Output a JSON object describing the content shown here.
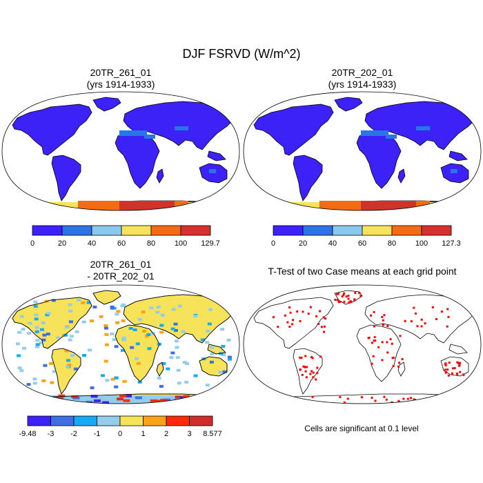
{
  "chart_data": [
    {
      "type": "heatmap",
      "panel": "top-left",
      "title_line1": "20TR_261_01",
      "title_line2": "(yrs 1914-1933)",
      "colorbar": {
        "ticks": [
          "0",
          "20",
          "40",
          "60",
          "80",
          "100",
          "129.7"
        ],
        "colors": [
          "#3c22f6",
          "#2b73e8",
          "#87c9ef",
          "#f7e35a",
          "#f56a12",
          "#d3312c"
        ]
      }
    },
    {
      "type": "heatmap",
      "panel": "top-right",
      "title_line1": "20TR_202_01",
      "title_line2": "(yrs 1914-1933)",
      "colorbar": {
        "ticks": [
          "0",
          "20",
          "40",
          "60",
          "80",
          "100",
          "127.3"
        ],
        "colors": [
          "#3c22f6",
          "#2b73e8",
          "#87c9ef",
          "#f7e35a",
          "#f56a12",
          "#d3312c"
        ]
      }
    },
    {
      "type": "heatmap",
      "panel": "bottom-left",
      "title_line1": "20TR_261_01",
      "title_line2": "- 20TR_202_01",
      "colorbar": {
        "ticks": [
          "-9.48",
          "-3",
          "-2",
          "-1",
          "0",
          "1",
          "2",
          "3",
          "8.577"
        ],
        "colors": [
          "#3c22f6",
          "#3f6fe0",
          "#19a8f2",
          "#94cdec",
          "#f7e35a",
          "#f9a31a",
          "#fe2a0a",
          "#cf2c2c"
        ]
      }
    },
    {
      "type": "heatmap",
      "panel": "bottom-right",
      "title_line1": "T-Test of two Case means at each grid point",
      "footnote": "Cells are significant at 0.1 level",
      "significance_color": "#ff0000"
    }
  ],
  "figure": {
    "title": "DJF FSRVD (W/m^2)"
  }
}
